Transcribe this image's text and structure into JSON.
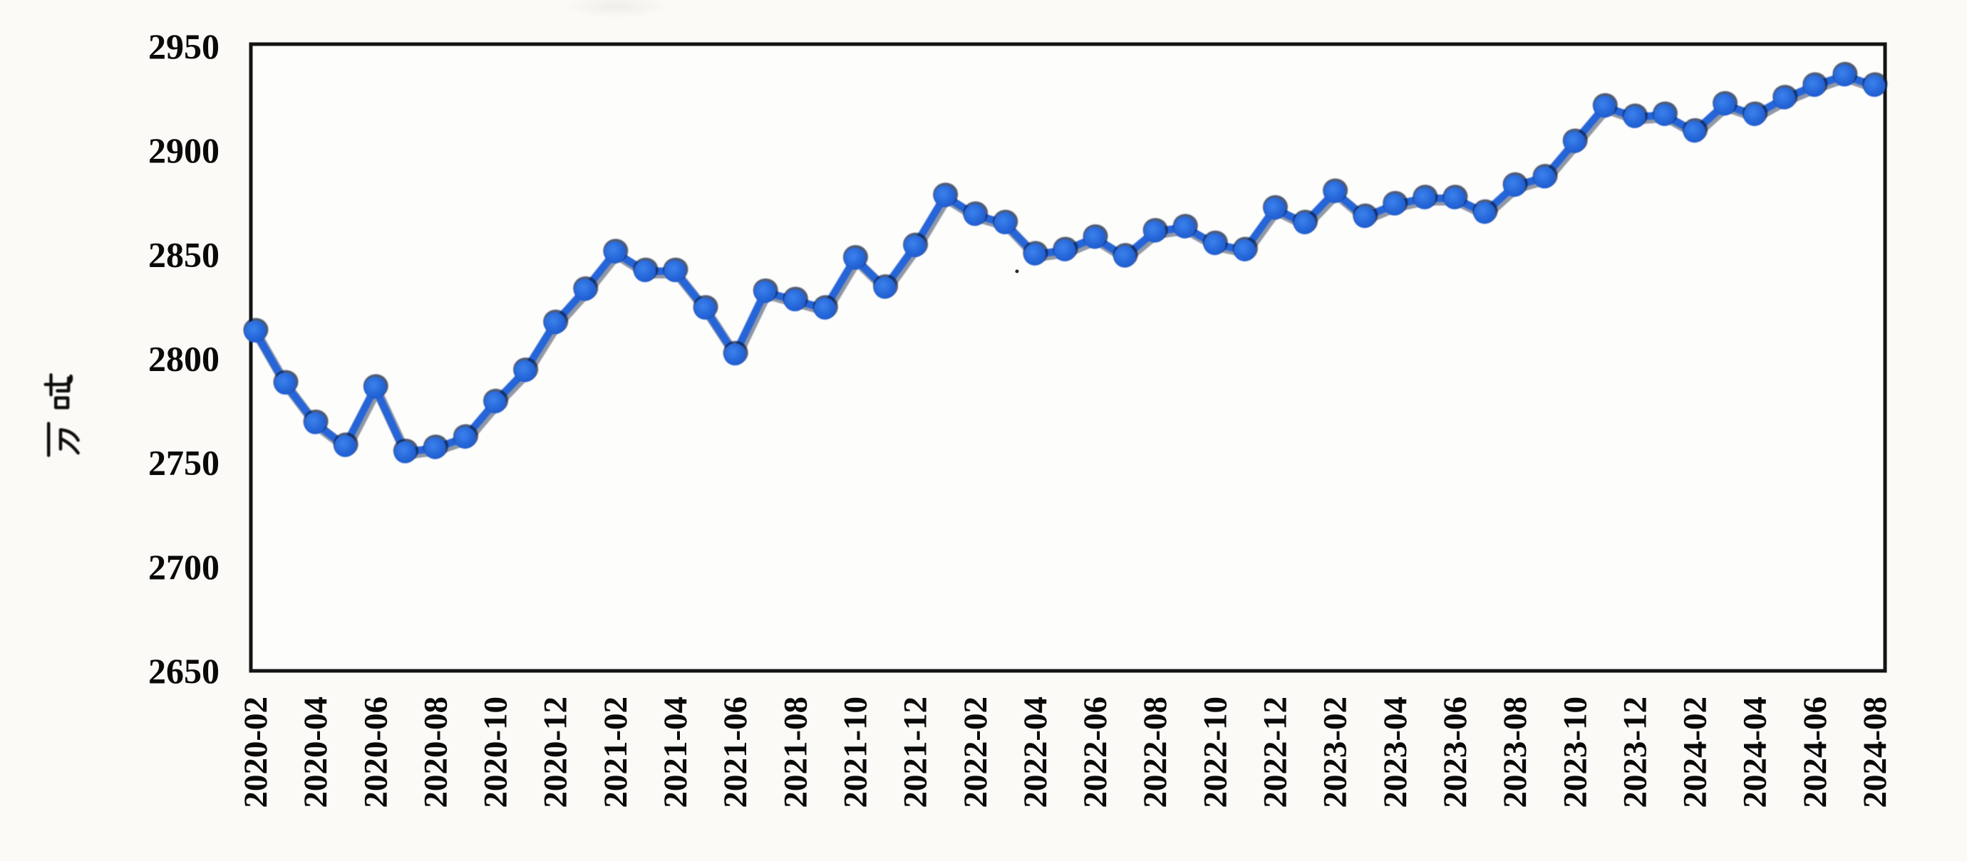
{
  "chart_data": {
    "type": "line",
    "title": "",
    "ylabel": "万吨",
    "xlabel": "",
    "ylim": [
      2650,
      2950
    ],
    "yticks": [
      2950,
      2900,
      2850,
      2800,
      2750,
      2700,
      2650
    ],
    "xtick_every": 2,
    "grid": false,
    "legend_position": "none",
    "x": [
      "2020-02",
      "2020-03",
      "2020-04",
      "2020-05",
      "2020-06",
      "2020-07",
      "2020-08",
      "2020-09",
      "2020-10",
      "2020-11",
      "2020-12",
      "2021-01",
      "2021-02",
      "2021-03",
      "2021-04",
      "2021-05",
      "2021-06",
      "2021-07",
      "2021-08",
      "2021-09",
      "2021-10",
      "2021-11",
      "2021-12",
      "2022-01",
      "2022-02",
      "2022-03",
      "2022-04",
      "2022-05",
      "2022-06",
      "2022-07",
      "2022-08",
      "2022-09",
      "2022-10",
      "2022-11",
      "2022-12",
      "2023-01",
      "2023-02",
      "2023-03",
      "2023-04",
      "2023-05",
      "2023-06",
      "2023-07",
      "2023-08",
      "2023-09",
      "2023-10",
      "2023-11",
      "2023-12",
      "2024-01",
      "2024-02",
      "2024-03",
      "2024-04",
      "2024-05",
      "2024-06",
      "2024-07",
      "2024-08"
    ],
    "series": [
      {
        "name": "",
        "values": [
          2813,
          2788,
          2769,
          2758,
          2786,
          2755,
          2757,
          2762,
          2779,
          2794,
          2817,
          2833,
          2851,
          2842,
          2842,
          2824,
          2802,
          2832,
          2828,
          2824,
          2848,
          2834,
          2854,
          2878,
          2869,
          2865,
          2850,
          2852,
          2858,
          2849,
          2861,
          2863,
          2855,
          2852,
          2872,
          2865,
          2880,
          2868,
          2874,
          2877,
          2877,
          2870,
          2883,
          2887,
          2904,
          2921,
          2916,
          2917,
          2909,
          2922,
          2917,
          2925,
          2931,
          2936,
          2931
        ]
      }
    ],
    "colors": {
      "line": "#2565d8",
      "dot_center": "#3b82ec",
      "dot": "#1d57c8",
      "dot_edge": "#0b1b3e",
      "axis": "#141414",
      "text": "#0a0a0a",
      "background": "#fbfaf7",
      "plot_background": "#fdfdfc"
    }
  }
}
